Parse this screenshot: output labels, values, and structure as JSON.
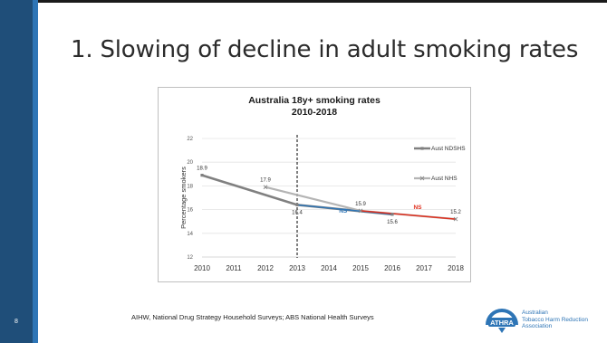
{
  "slide": {
    "title": "1. Slowing of decline in adult smoking rates",
    "source": "AIHW, National Drug Strategy Household Surveys; ABS National Health Surveys",
    "page_number": "8",
    "logo": {
      "lines": [
        "Australian",
        "Tobacco Harm Reduction",
        "Association"
      ],
      "mark_letters": "ATHRA",
      "color": "#2e75b6"
    }
  },
  "chart_data": {
    "type": "line",
    "title_lines": [
      "Australia 18y+ smoking rates",
      "2010-2018"
    ],
    "xlabel": "",
    "ylabel": "Percentage smokers",
    "categories": [
      "2010",
      "2011",
      "2012",
      "2013",
      "2014",
      "2015",
      "2016",
      "2017",
      "2018"
    ],
    "xlim": [
      2010,
      2018
    ],
    "ylim": [
      12,
      22
    ],
    "yticks": [
      "12",
      "14",
      "16",
      "18",
      "20",
      "22"
    ],
    "grid": true,
    "legend_position": "right",
    "series": [
      {
        "name": "Aust NDSHS",
        "color": "#808080",
        "points": [
          [
            2010,
            18.9
          ],
          [
            2013,
            16.4
          ],
          [
            2016,
            15.6
          ]
        ]
      },
      {
        "name": "Aust NHS",
        "color": "#b4b4b4",
        "points": [
          [
            2012,
            17.9
          ],
          [
            2015,
            15.9
          ],
          [
            2018,
            15.2
          ]
        ]
      }
    ],
    "trend_segments": [
      {
        "color": "#2e75b6",
        "points": [
          [
            2013,
            16.4
          ],
          [
            2016,
            15.6
          ]
        ]
      },
      {
        "color": "#e0301e",
        "points": [
          [
            2015,
            15.9
          ],
          [
            2018,
            15.2
          ]
        ]
      }
    ],
    "data_labels": [
      {
        "text": "18.9",
        "x": 2010,
        "y": 18.9,
        "pos": "above"
      },
      {
        "text": "17.9",
        "x": 2012,
        "y": 17.9,
        "pos": "above"
      },
      {
        "text": "16.4",
        "x": 2013,
        "y": 16.4,
        "pos": "below"
      },
      {
        "text": "15.9",
        "x": 2015,
        "y": 15.9,
        "pos": "above"
      },
      {
        "text": "15.6",
        "x": 2016,
        "y": 15.6,
        "pos": "below"
      },
      {
        "text": "15.2",
        "x": 2018,
        "y": 15.2,
        "pos": "above"
      }
    ],
    "annotations": [
      {
        "text": "NS",
        "x": 2014.45,
        "y": 15.9,
        "color": "#2e75b6"
      },
      {
        "text": "NS",
        "x": 2016.8,
        "y": 16.2,
        "color": "#e0301e"
      }
    ],
    "vertical_marker": {
      "x": 2013,
      "style": "dashed",
      "color": "#000000"
    }
  }
}
